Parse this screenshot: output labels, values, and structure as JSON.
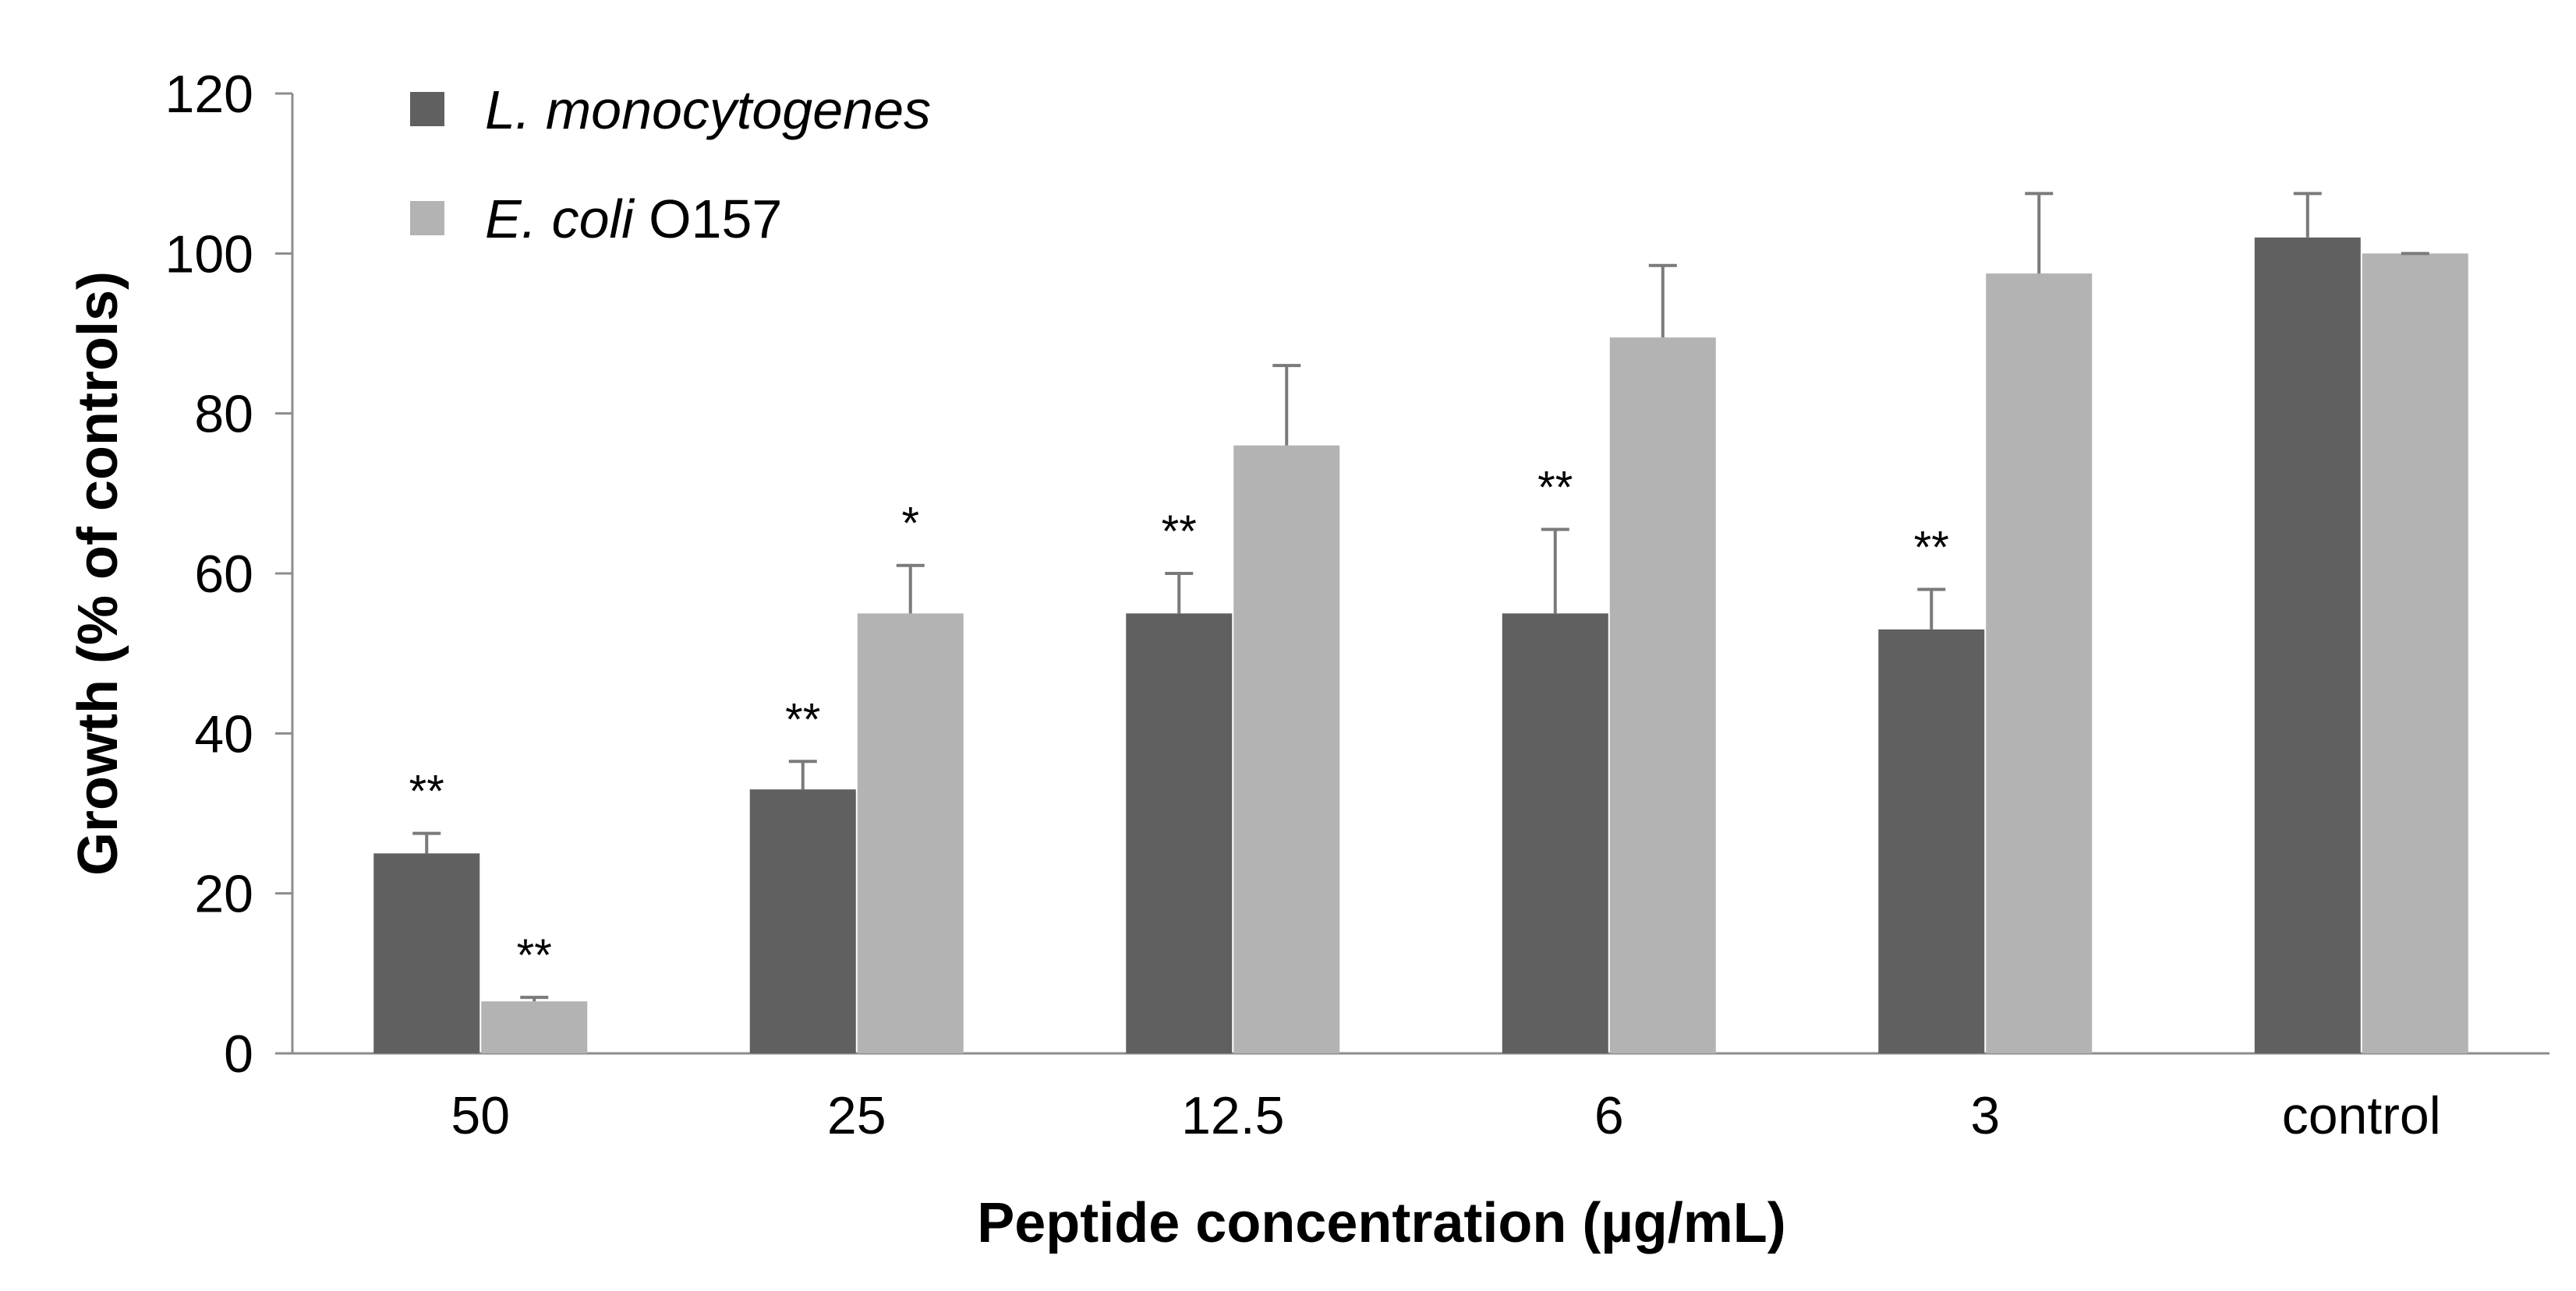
{
  "chart_data": {
    "type": "bar",
    "title": "",
    "xlabel": "Peptide concentration (µg/mL)",
    "ylabel": "Growth (% of controls)",
    "ylim": [
      0,
      120
    ],
    "yticks": [
      "0",
      "20",
      "40",
      "60",
      "80",
      "100",
      "120"
    ],
    "categories": [
      "50",
      "25",
      "12.5",
      "6",
      "3",
      "control"
    ],
    "legend_position": "top-left",
    "series": [
      {
        "name": "L. monocytogenes",
        "name_italic": "L. monocytogenes",
        "name_suffix": "",
        "color": "#606060",
        "values": [
          25,
          33,
          55,
          55,
          53,
          102
        ],
        "errors": [
          2.5,
          3.5,
          5,
          10.5,
          5,
          5.5
        ],
        "significance": [
          "**",
          "**",
          "**",
          "**",
          "**",
          ""
        ]
      },
      {
        "name": "E. coli O157",
        "name_italic": "E. coli",
        "name_suffix": " O157",
        "color": "#b3b3b3",
        "values": [
          6.5,
          55,
          76,
          89.5,
          97.5,
          100
        ],
        "errors": [
          0.5,
          6,
          10,
          9,
          10,
          0
        ],
        "significance": [
          "**",
          "*",
          "",
          "",
          "",
          ""
        ]
      }
    ]
  }
}
